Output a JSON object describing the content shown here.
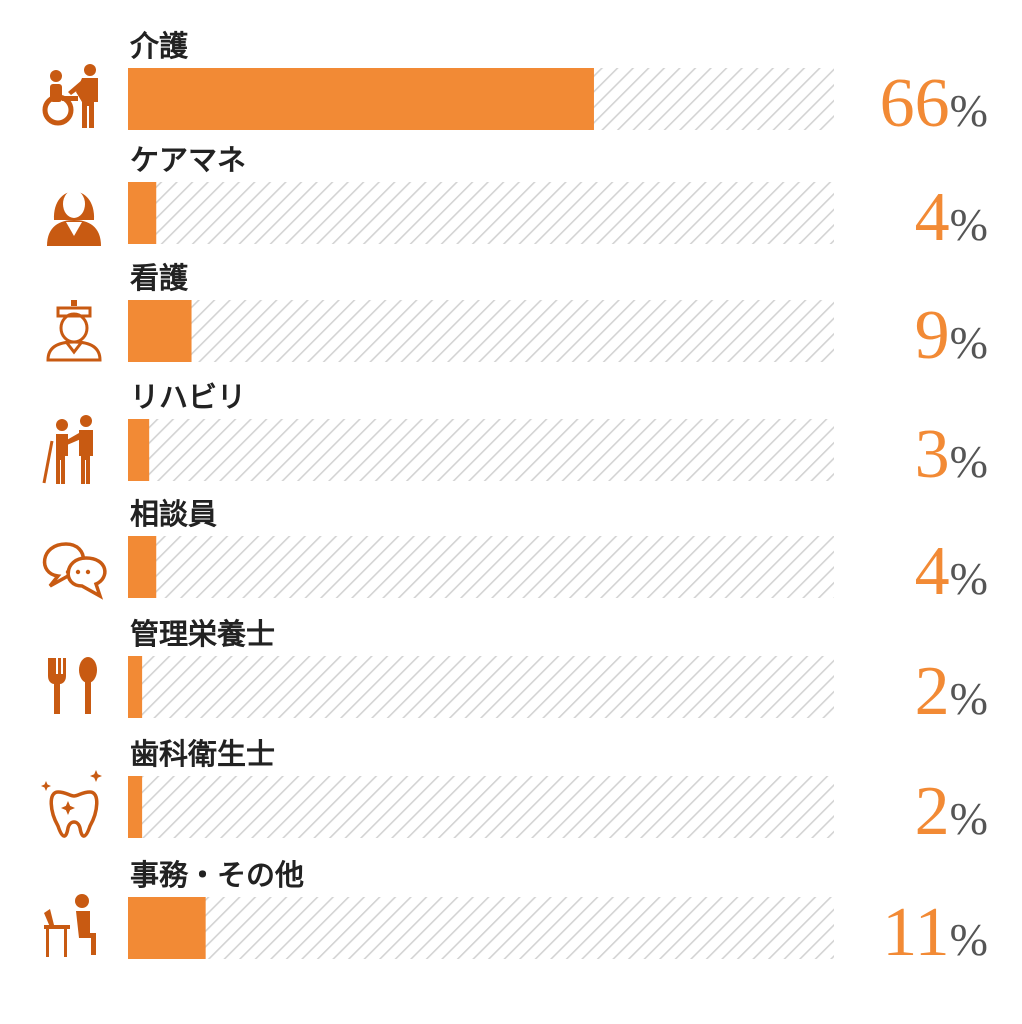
{
  "chart_data": {
    "type": "bar",
    "orientation": "horizontal",
    "categories": [
      "介護",
      "ケアマネ",
      "看護",
      "リハビリ",
      "相談員",
      "管理栄養士",
      "歯科衛生士",
      "事務・その他"
    ],
    "values": [
      66,
      4,
      9,
      3,
      4,
      2,
      2,
      11
    ],
    "value_suffix": "%",
    "xlim": [
      0,
      100
    ],
    "icons": [
      "wheelchair-caregiver-icon",
      "female-staff-icon",
      "nurse-icon",
      "rehab-walking-icon",
      "chat-bubbles-icon",
      "fork-spoon-icon",
      "tooth-sparkle-icon",
      "desk-worker-icon"
    ],
    "grid": false,
    "legend": "none"
  },
  "colors": {
    "bar": "#F28A35",
    "track_hatch": "#D3D3D3",
    "label_text": "#222222",
    "value_number": "#F28A35",
    "value_percent": "#555555",
    "icon": "#C85A12"
  }
}
